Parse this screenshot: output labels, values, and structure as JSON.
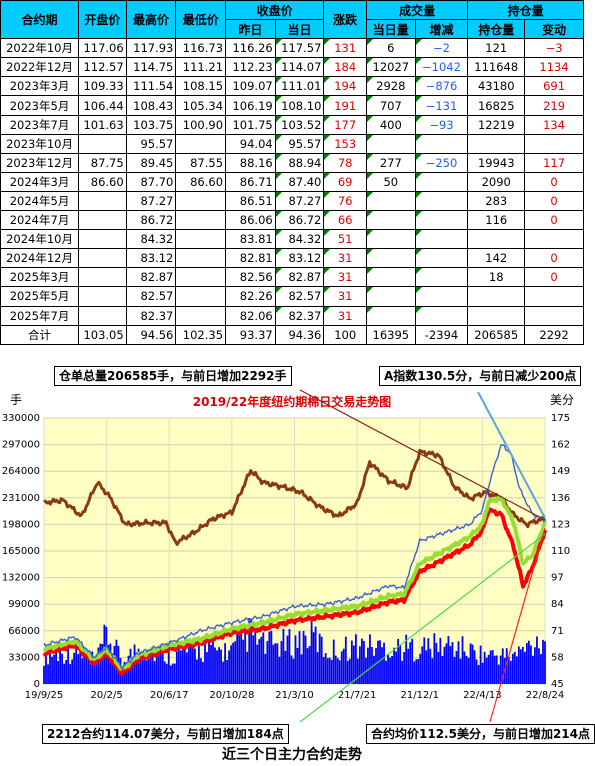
{
  "table": {
    "header1": [
      "合约期",
      "开盘价",
      "最高价",
      "最低价",
      "收盘价",
      "涨跌",
      "成交量",
      "持仓量"
    ],
    "header2": [
      "昨日",
      "当日",
      "当日量",
      "增减",
      "持仓量",
      "变动"
    ],
    "rows": [
      [
        "2022年10月",
        "117.06",
        "117.93",
        "116.73",
        "116.26",
        "117.57",
        "131",
        "6",
        "−2",
        "121",
        "−3"
      ],
      [
        "2022年12月",
        "112.57",
        "114.75",
        "111.21",
        "112.23",
        "114.07",
        "184",
        "12027",
        "−1042",
        "111648",
        "1134"
      ],
      [
        "2023年3月",
        "109.33",
        "111.54",
        "108.15",
        "109.07",
        "111.01",
        "194",
        "2928",
        "−876",
        "43180",
        "691"
      ],
      [
        "2023年5月",
        "106.44",
        "108.43",
        "105.34",
        "106.19",
        "108.10",
        "191",
        "707",
        "−131",
        "16825",
        "219"
      ],
      [
        "2023年7月",
        "101.63",
        "103.75",
        "100.90",
        "101.75",
        "103.52",
        "177",
        "400",
        "−93",
        "12219",
        "134"
      ],
      [
        "2023年10月",
        "",
        "95.57",
        "",
        "94.04",
        "95.57",
        "153",
        "",
        "",
        "",
        ""
      ],
      [
        "2023年12月",
        "87.75",
        "89.45",
        "87.55",
        "88.16",
        "88.94",
        "78",
        "277",
        "−250",
        "19943",
        "117"
      ],
      [
        "2024年3月",
        "86.60",
        "87.70",
        "86.60",
        "86.71",
        "87.40",
        "69",
        "50",
        "",
        "2090",
        "0"
      ],
      [
        "2024年5月",
        "",
        "87.27",
        "",
        "86.51",
        "87.27",
        "76",
        "",
        "",
        "283",
        "0"
      ],
      [
        "2024年7月",
        "",
        "86.72",
        "",
        "86.06",
        "86.72",
        "66",
        "",
        "",
        "116",
        "0"
      ],
      [
        "2024年10月",
        "",
        "84.32",
        "",
        "83.81",
        "84.32",
        "51",
        "",
        "",
        "",
        ""
      ],
      [
        "2024年12月",
        "",
        "83.12",
        "",
        "82.81",
        "83.12",
        "31",
        "",
        "",
        "142",
        "0"
      ],
      [
        "2025年3月",
        "",
        "82.87",
        "",
        "82.56",
        "82.87",
        "31",
        "",
        "",
        "18",
        "0"
      ],
      [
        "2025年5月",
        "",
        "82.57",
        "",
        "82.26",
        "82.57",
        "31",
        "",
        "",
        "",
        ""
      ],
      [
        "2025年7月",
        "",
        "82.37",
        "",
        "82.06",
        "82.37",
        "31",
        "",
        "",
        "",
        ""
      ]
    ],
    "total": [
      "合计",
      "103.05",
      "94.56",
      "102.35",
      "93.37",
      "94.36",
      "100",
      "16395",
      "-2394",
      "206585",
      "2292"
    ]
  },
  "banners": {
    "top_left": "仓单总量206585手，与前日增加2292手",
    "top_right": "A指数130.5分，与前日减少200点",
    "bottom_left": "2212合约114.07美分，与前日增加184点",
    "bottom_right": "合约均价112.5美分，与前日增加214点"
  },
  "footer": "近三个日主力合约走势",
  "colors": {
    "header_bg": "#00ccff",
    "plot_bg": "#ffffc4",
    "title": "#e00000",
    "volume": "#0000ff",
    "oi": "#8b3a0f",
    "high": "#3a62d0",
    "close": "#ff0000",
    "avg": "#99dd33"
  },
  "chart_data": {
    "type": "line",
    "title": "2019/22年度纽约期棉日交易走势图",
    "ylabel_left": "手",
    "ylabel_right": "美分",
    "y_left_ticks": [
      0,
      33000,
      66000,
      99000,
      132000,
      165000,
      198000,
      231000,
      264000,
      297000,
      330000
    ],
    "y_right_ticks": [
      45,
      58,
      71,
      84,
      97,
      110,
      123,
      136,
      149,
      162,
      175
    ],
    "x_ticks": [
      "19/9/25",
      "20/2/5",
      "20/6/17",
      "20/10/28",
      "21/3/10",
      "21/7/21",
      "21/12/1",
      "22/4/13",
      "22/8/24"
    ],
    "x_range": [
      0,
      8
    ],
    "series": [
      {
        "axis": "left",
        "kind": "bar",
        "points": [
          [
            0,
            50000
          ],
          [
            0.5,
            56000
          ],
          [
            0.85,
            40000
          ],
          [
            1,
            85000
          ],
          [
            1.25,
            38000
          ],
          [
            1.5,
            60000
          ],
          [
            2,
            50000
          ],
          [
            2.5,
            58000
          ],
          [
            3,
            56000
          ],
          [
            3.3,
            88000
          ],
          [
            3.5,
            66000
          ],
          [
            4,
            70000
          ],
          [
            4.3,
            85000
          ],
          [
            4.5,
            55000
          ],
          [
            5,
            66000
          ],
          [
            5.5,
            62000
          ],
          [
            6,
            62000
          ],
          [
            6.5,
            66000
          ],
          [
            7,
            50000
          ],
          [
            7.5,
            48000
          ],
          [
            7.95,
            78000
          ]
        ]
      },
      {
        "axis": "left",
        "kind": "line",
        "points": [
          [
            0,
            225000
          ],
          [
            0.3,
            228000
          ],
          [
            0.6,
            208000
          ],
          [
            0.85,
            250000
          ],
          [
            1.05,
            232000
          ],
          [
            1.3,
            198000
          ],
          [
            1.65,
            200000
          ],
          [
            1.95,
            200000
          ],
          [
            2.1,
            175000
          ],
          [
            2.4,
            188000
          ],
          [
            2.7,
            205000
          ],
          [
            3.0,
            213000
          ],
          [
            3.3,
            265000
          ],
          [
            3.5,
            250000
          ],
          [
            3.8,
            245000
          ],
          [
            4.1,
            238000
          ],
          [
            4.4,
            220000
          ],
          [
            4.7,
            208000
          ],
          [
            5.0,
            224000
          ],
          [
            5.2,
            275000
          ],
          [
            5.5,
            252000
          ],
          [
            5.8,
            243000
          ],
          [
            6.0,
            288000
          ],
          [
            6.3,
            284000
          ],
          [
            6.55,
            245000
          ],
          [
            6.8,
            230000
          ],
          [
            7.05,
            238000
          ],
          [
            7.3,
            230000
          ],
          [
            7.5,
            210000
          ],
          [
            7.7,
            198000
          ],
          [
            7.85,
            202000
          ],
          [
            8.0,
            205000
          ]
        ]
      },
      {
        "axis": "right",
        "kind": "line",
        "points": [
          [
            0,
            64
          ],
          [
            0.5,
            68
          ],
          [
            0.8,
            58
          ],
          [
            1.0,
            63
          ],
          [
            1.25,
            53
          ],
          [
            1.5,
            60
          ],
          [
            2.0,
            65
          ],
          [
            2.5,
            71
          ],
          [
            3.0,
            75
          ],
          [
            3.5,
            78
          ],
          [
            4.0,
            83
          ],
          [
            4.5,
            84
          ],
          [
            5.0,
            87
          ],
          [
            5.5,
            93
          ],
          [
            5.75,
            92
          ],
          [
            6.0,
            115
          ],
          [
            6.2,
            117
          ],
          [
            6.5,
            120
          ],
          [
            6.8,
            123
          ],
          [
            7.0,
            130
          ],
          [
            7.1,
            142
          ],
          [
            7.3,
            162
          ],
          [
            7.45,
            158
          ],
          [
            7.6,
            140
          ],
          [
            7.8,
            128
          ],
          [
            8.0,
            125
          ]
        ]
      },
      {
        "axis": "right",
        "kind": "line",
        "points": [
          [
            0,
            60
          ],
          [
            0.5,
            64
          ],
          [
            0.8,
            55
          ],
          [
            1.0,
            60
          ],
          [
            1.25,
            50
          ],
          [
            1.5,
            57
          ],
          [
            2.0,
            62
          ],
          [
            2.5,
            65
          ],
          [
            3.0,
            70
          ],
          [
            3.5,
            72
          ],
          [
            4.0,
            76
          ],
          [
            4.5,
            78
          ],
          [
            5.0,
            80
          ],
          [
            5.5,
            85
          ],
          [
            5.75,
            86
          ],
          [
            6.0,
            100
          ],
          [
            6.2,
            103
          ],
          [
            6.5,
            108
          ],
          [
            6.8,
            113
          ],
          [
            7.0,
            120
          ],
          [
            7.1,
            130
          ],
          [
            7.3,
            128
          ],
          [
            7.5,
            112
          ],
          [
            7.65,
            93
          ],
          [
            7.8,
            102
          ],
          [
            8.0,
            120
          ]
        ]
      },
      {
        "axis": "right",
        "kind": "line",
        "points": [
          [
            0,
            62
          ],
          [
            0.5,
            66
          ],
          [
            0.8,
            57
          ],
          [
            1.0,
            62
          ],
          [
            1.25,
            52
          ],
          [
            1.5,
            59
          ],
          [
            2.0,
            64
          ],
          [
            2.5,
            67
          ],
          [
            3.0,
            72
          ],
          [
            3.5,
            75
          ],
          [
            4.0,
            79
          ],
          [
            4.5,
            81
          ],
          [
            5.0,
            83
          ],
          [
            5.5,
            88
          ],
          [
            5.75,
            89
          ],
          [
            6.0,
            104
          ],
          [
            6.2,
            107
          ],
          [
            6.5,
            112
          ],
          [
            6.8,
            117
          ],
          [
            7.0,
            123
          ],
          [
            7.1,
            134
          ],
          [
            7.3,
            136
          ],
          [
            7.5,
            124
          ],
          [
            7.65,
            104
          ],
          [
            7.8,
            108
          ],
          [
            8.0,
            124
          ]
        ]
      }
    ]
  }
}
